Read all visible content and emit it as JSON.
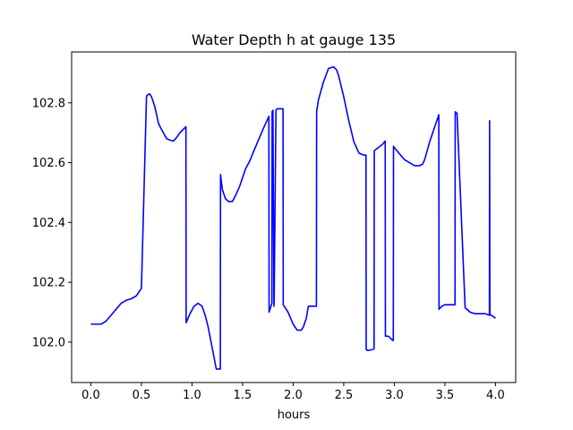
{
  "chart_data": {
    "type": "line",
    "title": "Water Depth h at gauge 135",
    "xlabel": "hours",
    "ylabel": "",
    "xlim": [
      -0.19,
      4.2
    ],
    "ylim": [
      101.865,
      102.97
    ],
    "xticks": [
      "0.0",
      "0.5",
      "1.0",
      "1.5",
      "2.0",
      "2.5",
      "3.0",
      "3.5",
      "4.0"
    ],
    "yticks": [
      "102.0",
      "102.2",
      "102.4",
      "102.6",
      "102.8"
    ],
    "grid": false,
    "line_color": "#0000ff",
    "series": [
      {
        "x": [
          0.0,
          0.1,
          0.15,
          0.2,
          0.25,
          0.3,
          0.35,
          0.4,
          0.45,
          0.5,
          0.55,
          0.556,
          0.58,
          0.6,
          0.63,
          0.67,
          0.7,
          0.75,
          0.8,
          0.82,
          0.85,
          0.88,
          0.94,
          0.942,
          0.98,
          1.02,
          1.06,
          1.1,
          1.13,
          1.16,
          1.2,
          1.24,
          1.28,
          1.282,
          1.3,
          1.33,
          1.36,
          1.4,
          1.43,
          1.47,
          1.5,
          1.53,
          1.57,
          1.6,
          1.65,
          1.7,
          1.76,
          1.762,
          1.78,
          1.79,
          1.792,
          1.8,
          1.81,
          1.812,
          1.83,
          1.84,
          1.842,
          1.85,
          1.9,
          1.902,
          1.95,
          2.0,
          2.04,
          2.08,
          2.1,
          2.13,
          2.15,
          2.2,
          2.23,
          2.232,
          2.25,
          2.3,
          2.35,
          2.4,
          2.43,
          2.45,
          2.5,
          2.55,
          2.6,
          2.65,
          2.7,
          2.72,
          2.722,
          2.74,
          2.78,
          2.8,
          2.802,
          2.84,
          2.88,
          2.91,
          2.912,
          2.94,
          2.97,
          2.99,
          2.992,
          3.0,
          3.05,
          3.1,
          3.15,
          3.2,
          3.25,
          3.28,
          3.3,
          3.35,
          3.4,
          3.44,
          3.442,
          3.47,
          3.5,
          3.55,
          3.59,
          3.6,
          3.602,
          3.62,
          3.7,
          3.75,
          3.8,
          3.85,
          3.9,
          3.94,
          3.942,
          3.945,
          3.96,
          4.0
        ],
        "y": [
          102.06,
          102.06,
          102.07,
          102.09,
          102.11,
          102.13,
          102.14,
          102.145,
          102.155,
          102.18,
          102.82,
          102.825,
          102.83,
          102.82,
          102.79,
          102.73,
          102.71,
          102.68,
          102.673,
          102.673,
          102.685,
          102.7,
          102.72,
          102.065,
          102.095,
          102.12,
          102.13,
          102.12,
          102.09,
          102.05,
          101.98,
          101.91,
          101.91,
          102.56,
          102.51,
          102.48,
          102.47,
          102.47,
          102.49,
          102.52,
          102.55,
          102.58,
          102.605,
          102.63,
          102.67,
          102.71,
          102.755,
          102.1,
          102.12,
          102.13,
          102.77,
          102.775,
          102.12,
          102.13,
          102.775,
          102.78,
          102.78,
          102.78,
          102.78,
          102.125,
          102.1,
          102.06,
          102.04,
          102.04,
          102.05,
          102.08,
          102.12,
          102.12,
          102.12,
          102.77,
          102.81,
          102.87,
          102.915,
          102.92,
          102.91,
          102.89,
          102.82,
          102.74,
          102.67,
          102.632,
          102.625,
          102.625,
          101.975,
          101.972,
          101.975,
          101.977,
          102.64,
          102.65,
          102.66,
          102.672,
          102.02,
          102.02,
          102.01,
          102.005,
          102.655,
          102.65,
          102.63,
          102.61,
          102.6,
          102.59,
          102.59,
          102.595,
          102.61,
          102.67,
          102.72,
          102.76,
          102.11,
          102.12,
          102.125,
          102.125,
          102.125,
          102.125,
          102.77,
          102.765,
          102.115,
          102.1,
          102.095,
          102.095,
          102.095,
          102.09,
          102.74,
          102.09,
          102.09,
          102.08
        ]
      }
    ]
  }
}
